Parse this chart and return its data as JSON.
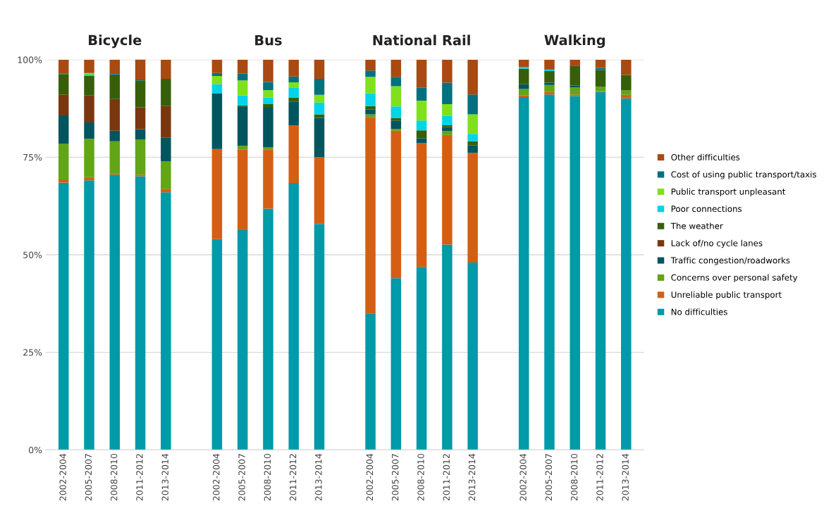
{
  "chart_data": {
    "type": "bar",
    "stacked": true,
    "annotations": [
      "Bicycle",
      "Bus",
      "National Rail",
      "Walking"
    ],
    "categories": [
      "2002-2004",
      "2005-2007",
      "2008-2010",
      "2011-2012",
      "2013-2014",
      null,
      "2002-2004",
      "2005-2007",
      "2008-2010",
      "2011-2012",
      "2013-2014",
      null,
      "2002-2004",
      "2005-2007",
      "2008-2010",
      "2011-2012",
      "2013-2014",
      null,
      "2002-2004",
      "2005-2007",
      "2008-2010",
      "2011-2012",
      "2013-2014"
    ],
    "series": [
      {
        "name": "No difficulties",
        "color": "#009aa8",
        "values": [
          68.5,
          69.1,
          70.5,
          70.1,
          66.0,
          null,
          54.0,
          56.3,
          61.8,
          68.4,
          57.9,
          null,
          35.0,
          44.0,
          46.9,
          52.6,
          48.0,
          null,
          90.4,
          91.1,
          90.7,
          91.7,
          90.1
        ]
      },
      {
        "name": "Unreliable public transport",
        "color": "#d45f14",
        "values": [
          0.8,
          0.8,
          0.4,
          0.4,
          0.9,
          null,
          23.1,
          20.7,
          15.2,
          14.6,
          17.1,
          null,
          50.3,
          37.8,
          31.7,
          28.1,
          28.1,
          null,
          0.4,
          0.6,
          0.4,
          0.2,
          0.9
        ]
      },
      {
        "name": "Concerns over personal safety",
        "color": "#62a516",
        "values": [
          9.2,
          9.8,
          8.2,
          9.1,
          7.1,
          null,
          0,
          0.9,
          0.6,
          0.2,
          0,
          null,
          0.7,
          0.5,
          0,
          1.0,
          0,
          null,
          1.7,
          1.8,
          1.8,
          1.2,
          1.2
        ]
      },
      {
        "name": "Traffic congestion/roadworks",
        "color": "#00555f",
        "values": [
          7.2,
          4.2,
          2.7,
          2.6,
          6.0,
          null,
          14.2,
          10.1,
          10.1,
          6.1,
          10.1,
          null,
          1.2,
          2.1,
          1.2,
          1.0,
          1.9,
          null,
          1.2,
          0.6,
          0.5,
          0,
          0
        ]
      },
      {
        "name": "Lack of/no cycle lanes",
        "color": "#7a370f",
        "values": [
          5.4,
          6.9,
          8.1,
          5.6,
          8.1,
          null,
          0,
          0,
          0,
          0,
          0,
          null,
          0,
          0,
          0,
          0,
          0,
          null,
          0,
          0,
          0,
          0,
          0
        ]
      },
      {
        "name": "The weather",
        "color": "#375f09",
        "values": [
          5.2,
          5.0,
          6.1,
          6.9,
          7.0,
          null,
          0,
          0.3,
          0.9,
          1.0,
          0.9,
          null,
          0.9,
          0.7,
          2.1,
          0.5,
          1.1,
          null,
          4.0,
          3.0,
          5.1,
          4.2,
          3.9
        ]
      },
      {
        "name": "Poor connections",
        "color": "#00d4e8",
        "values": [
          0,
          0.4,
          0,
          0,
          0,
          null,
          2.4,
          2.5,
          1.7,
          2.6,
          3.0,
          null,
          3.3,
          2.9,
          2.5,
          2.4,
          1.9,
          null,
          0.4,
          0.3,
          0,
          0,
          0
        ]
      },
      {
        "name": "Public transport unpleasant",
        "color": "#80e01c",
        "values": [
          0,
          0.4,
          0,
          0,
          0,
          null,
          2.1,
          3.9,
          1.9,
          1.3,
          2.0,
          null,
          4.2,
          5.2,
          5.1,
          3.0,
          5.0,
          null,
          0,
          0,
          0,
          0,
          0
        ]
      },
      {
        "name": "Cost of using public transport/taxis",
        "color": "#00727f",
        "values": [
          0.2,
          0,
          0.3,
          0.2,
          0,
          null,
          0.8,
          1.7,
          2.1,
          1.5,
          4.1,
          null,
          1.6,
          2.4,
          3.3,
          5.5,
          5.1,
          null,
          0,
          0.2,
          0,
          0.6,
          0
        ]
      },
      {
        "name": "Other difficulties",
        "color": "#a84a12",
        "values": [
          3.5,
          3.4,
          3.7,
          5.3,
          4.9,
          null,
          3.4,
          3.6,
          5.7,
          4.3,
          4.9,
          null,
          2.8,
          4.4,
          7.2,
          5.9,
          8.9,
          null,
          1.9,
          2.4,
          1.5,
          2.1,
          3.9
        ]
      }
    ],
    "ylim": [
      0,
      100
    ],
    "yticks": [
      {
        "value": 0,
        "label": "0%"
      },
      {
        "value": 25,
        "label": "25%"
      },
      {
        "value": 50,
        "label": "50%"
      },
      {
        "value": 75,
        "label": "75%"
      },
      {
        "value": 100,
        "label": "100%"
      }
    ],
    "grid": "y",
    "legend": "right"
  }
}
